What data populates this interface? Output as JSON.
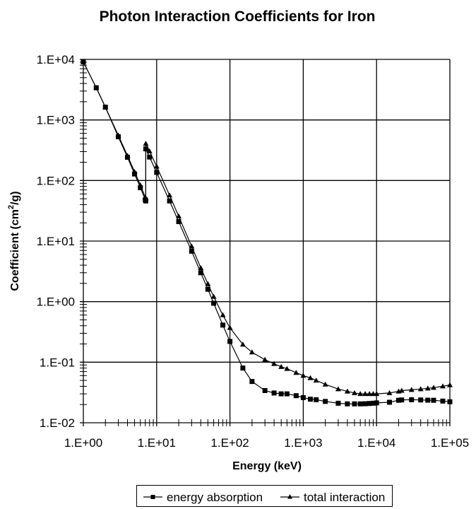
{
  "chart_data": {
    "type": "line",
    "title": "Photon Interaction Coefficients  for Iron",
    "xlabel": "Energy (keV)",
    "ylabel": "Coefficient (cm²/g)",
    "ylabel_parts": {
      "pre": "Coefficient (cm",
      "sup": "2",
      "post": "/g)"
    },
    "xscale": "log",
    "yscale": "log",
    "xlim": [
      1,
      100000
    ],
    "ylim": [
      0.01,
      10000
    ],
    "x_ticks": [
      "1.E+00",
      "1.E+01",
      "1.E+02",
      "1.E+03",
      "1.E+04",
      "1.E+05"
    ],
    "y_ticks": [
      "1.E+04",
      "1.E+03",
      "1.E+02",
      "1.E+01",
      "1.E+00",
      "1.E-01",
      "1.E-02"
    ],
    "grid": true,
    "legend_position": "bottom",
    "series": [
      {
        "name": "energy absorption",
        "marker": "square",
        "color": "#000000",
        "x": [
          1,
          1.5,
          2,
          3,
          4,
          5,
          6,
          7,
          7.112,
          7.112,
          8,
          10,
          15,
          20,
          30,
          40,
          50,
          60,
          80,
          100,
          150,
          200,
          300,
          400,
          500,
          600,
          800,
          1000,
          1250,
          1500,
          2000,
          3000,
          4000,
          5000,
          6000,
          7000,
          8000,
          9000,
          10000,
          15000,
          20000,
          22000,
          30000,
          40000,
          50000,
          60000,
          80000,
          100000
        ],
        "values": [
          9085,
          3399,
          1626,
          527,
          242,
          128,
          76,
          48,
          46,
          333,
          244,
          136,
          46,
          21,
          6.8,
          3.0,
          1.6,
          0.94,
          0.41,
          0.22,
          0.08,
          0.048,
          0.034,
          0.031,
          0.03,
          0.03,
          0.028,
          0.026,
          0.0245,
          0.024,
          0.0225,
          0.021,
          0.0205,
          0.0205,
          0.0205,
          0.0206,
          0.0208,
          0.021,
          0.0213,
          0.0218,
          0.0235,
          0.0238,
          0.024,
          0.0238,
          0.0236,
          0.0235,
          0.0228,
          0.0222
        ]
      },
      {
        "name": "total interaction",
        "marker": "triangle",
        "color": "#000000",
        "x": [
          1,
          1.5,
          2,
          3,
          4,
          5,
          6,
          7,
          7.112,
          7.112,
          8,
          10,
          15,
          20,
          30,
          40,
          50,
          60,
          80,
          100,
          150,
          200,
          300,
          400,
          500,
          600,
          800,
          1000,
          1250,
          1500,
          2000,
          3000,
          4000,
          5000,
          6000,
          7000,
          8000,
          9000,
          10000,
          15000,
          20000,
          22000,
          30000,
          40000,
          50000,
          60000,
          80000,
          100000
        ],
        "values": [
          9085,
          3399,
          1626,
          557,
          257,
          139,
          84,
          53,
          51,
          407,
          305,
          171,
          57,
          25.7,
          8.2,
          3.6,
          1.96,
          1.21,
          0.6,
          0.37,
          0.196,
          0.146,
          0.11,
          0.094,
          0.084,
          0.078,
          0.067,
          0.06,
          0.055,
          0.05,
          0.043,
          0.036,
          0.033,
          0.031,
          0.03,
          0.03,
          0.03,
          0.03,
          0.03,
          0.031,
          0.033,
          0.034,
          0.035,
          0.036,
          0.037,
          0.038,
          0.04,
          0.042
        ]
      }
    ]
  },
  "legend": {
    "items": [
      {
        "label": "energy absorption",
        "marker": "square"
      },
      {
        "label": "total interaction",
        "marker": "triangle"
      }
    ]
  }
}
